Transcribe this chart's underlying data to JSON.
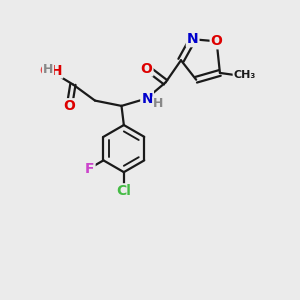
{
  "bg_color": "#ebebeb",
  "bond_color": "#1a1a1a",
  "bond_width": 1.6,
  "atom_colors": {
    "O": "#dd0000",
    "N": "#0000cc",
    "F": "#cc44cc",
    "Cl": "#44bb44",
    "C": "#1a1a1a",
    "H": "#888888"
  },
  "font_size": 10,
  "small_font_size": 9
}
